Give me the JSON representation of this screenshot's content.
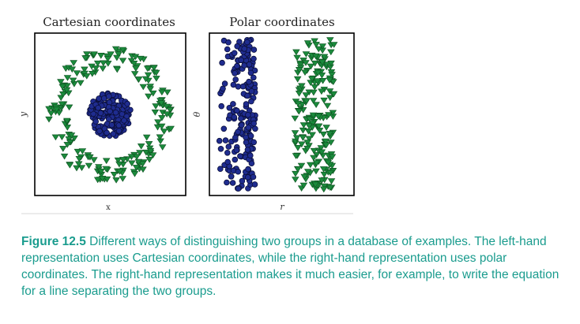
{
  "colors": {
    "circle_fill": "#1f2c8f",
    "circle_edge": "#0b0f3a",
    "triangle_fill": "#1b8a3c",
    "triangle_edge": "#0d4f1f",
    "caption": "#1a9c8e",
    "frame": "#000000",
    "separator": "#d9d9d9"
  },
  "chart_data": [
    {
      "type": "scatter",
      "title": "Cartesian coordinates",
      "xlabel": "x",
      "ylabel": "y",
      "xlim": [
        -1.0,
        1.0
      ],
      "ylim": [
        -1.0,
        1.0
      ],
      "ticks": "none",
      "grid": false,
      "series": [
        {
          "marker": "circle",
          "color": "#1f2c8f",
          "distribution": "filled disk centred at origin, radius 0 to 0.3",
          "count": 200
        },
        {
          "marker": "triangle-down",
          "color": "#1b8a3c",
          "distribution": "ring centred at origin, radius 0.6 to 0.9",
          "count": 200
        }
      ]
    },
    {
      "type": "scatter",
      "title": "Polar coordinates",
      "xlabel": "r",
      "ylabel": "θ",
      "xlim": [
        0.0,
        1.0
      ],
      "ylim": [
        0.0,
        6.283
      ],
      "ticks": "none",
      "grid": false,
      "series": [
        {
          "marker": "circle",
          "color": "#1f2c8f",
          "distribution": "r from 0 to 0.3, θ from 0 to 2π",
          "count": 200
        },
        {
          "marker": "triangle-down",
          "color": "#1b8a3c",
          "distribution": "r from 0.6 to 0.9, θ from 0 to 2π",
          "count": 200
        }
      ]
    }
  ],
  "caption": {
    "label": "Figure 12.5",
    "text": "Different ways of distinguishing two groups in a database of examples. The left-hand representation uses Cartesian coordinates, while the right-hand representation uses polar coordinates. The right-hand representation makes it much easier, for example, to write the equation for a line separating the two groups."
  }
}
